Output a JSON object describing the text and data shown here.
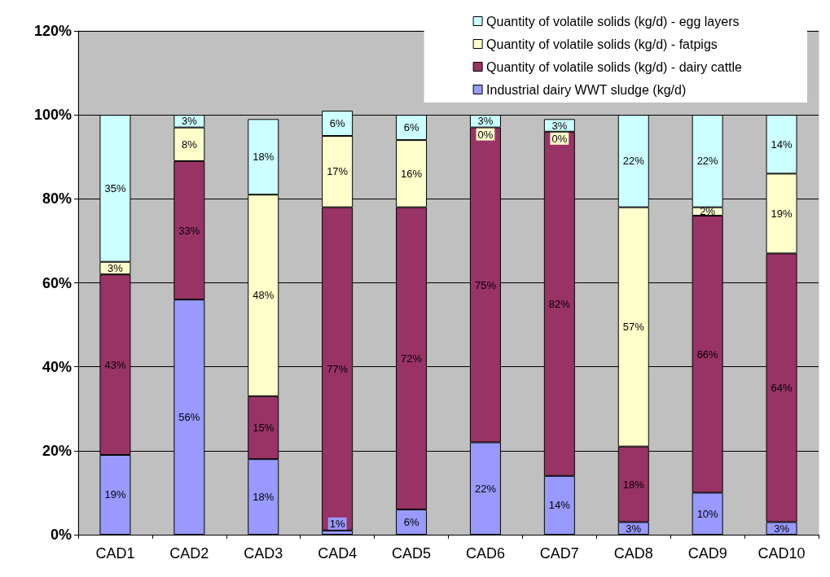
{
  "chart_data": {
    "type": "bar",
    "stacked": true,
    "categories": [
      "CAD1",
      "CAD2",
      "CAD3",
      "CAD4",
      "CAD5",
      "CAD6",
      "CAD7",
      "CAD8",
      "CAD9",
      "CAD10"
    ],
    "series": [
      {
        "name": "Industrial dairy WWT sludge (kg/d)",
        "color": "#9999ff",
        "values": [
          19,
          56,
          18,
          1,
          6,
          22,
          14,
          3,
          10,
          3
        ],
        "value_labels": [
          "19%",
          "56%",
          "18%",
          "1%",
          "6%",
          "22%",
          "14%",
          "3%",
          "10%",
          "3%"
        ]
      },
      {
        "name": "Quantity of volatile solids (kg/d) - dairy cattle",
        "color": "#993366",
        "values": [
          43,
          33,
          15,
          77,
          72,
          75,
          82,
          18,
          66,
          64
        ],
        "value_labels": [
          "43%",
          "33%",
          "15%",
          "77%",
          "72%",
          "75%",
          "82%",
          "18%",
          "66%",
          "64%"
        ]
      },
      {
        "name": "Quantity of volatile solids (kg/d) - fatpigs",
        "color": "#ffffcc",
        "values": [
          3,
          8,
          48,
          17,
          16,
          0,
          0,
          57,
          2,
          19
        ],
        "value_labels": [
          "3%",
          "8%",
          "48%",
          "17%",
          "16%",
          "0%",
          "0%",
          "57%",
          "2%",
          "19%"
        ]
      },
      {
        "name": "Quantity of volatile solids (kg/d) - egg layers",
        "color": "#ccffff",
        "values": [
          35,
          3,
          18,
          6,
          6,
          3,
          3,
          22,
          22,
          14
        ],
        "value_labels": [
          "35%",
          "3%",
          "18%",
          "6%",
          "6%",
          "3%",
          "3%",
          "22%",
          "22%",
          "14%"
        ]
      }
    ],
    "ylim": [
      0,
      120
    ],
    "yticks": [
      {
        "value": 0,
        "label": "0%"
      },
      {
        "value": 20,
        "label": "20%"
      },
      {
        "value": 40,
        "label": "40%"
      },
      {
        "value": 60,
        "label": "60%"
      },
      {
        "value": 80,
        "label": "80%"
      },
      {
        "value": 100,
        "label": "100%"
      },
      {
        "value": 120,
        "label": "120%"
      }
    ],
    "grid": "y",
    "legend": "top right"
  }
}
